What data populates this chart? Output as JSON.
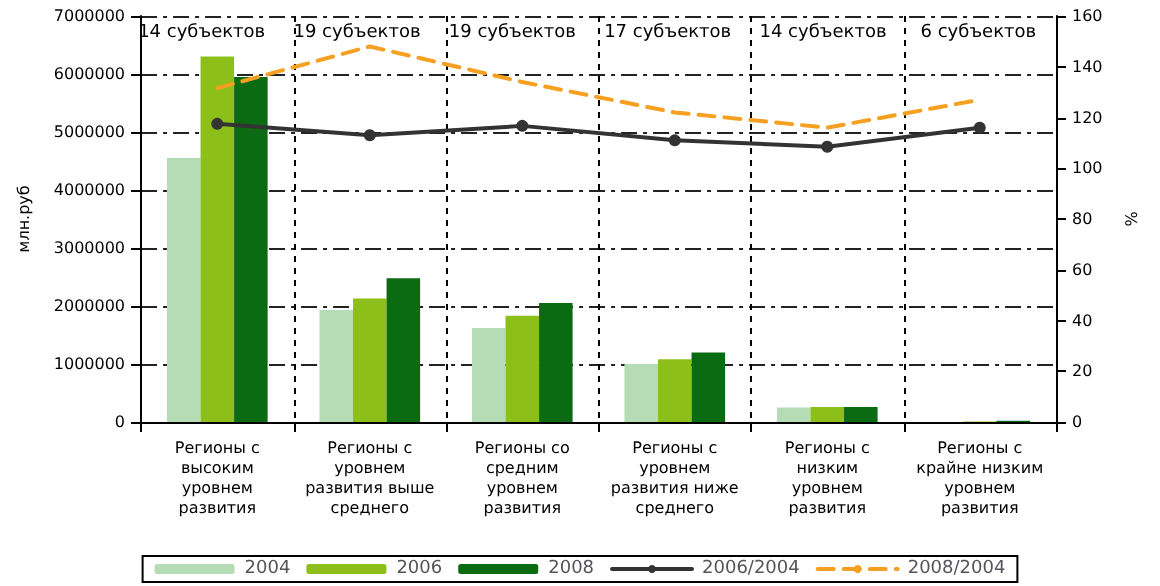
{
  "chart_data": {
    "type": "bar",
    "ylabel": "млн.руб",
    "y2label": "%",
    "categories": [
      "Регионы с высоким уровнем развития",
      "Регионы с уровнем развития выше среднего",
      "Регионы со средним уровнем развития",
      "Регионы с уровнем развития ниже среднего",
      "Регионы с низким уровнем развития",
      "Регионы с крайне низким уровнем развития"
    ],
    "series": [
      {
        "name": "2004",
        "color": "#b5dcb5",
        "values": [
          4550000,
          1930000,
          1620000,
          1000000,
          250000,
          null
        ]
      },
      {
        "name": "2006",
        "color": "#8cbf1a",
        "values": [
          6300000,
          2130000,
          1830000,
          1080000,
          260000,
          10000
        ]
      },
      {
        "name": "2008",
        "color": "#0b6b12",
        "values": [
          5950000,
          2480000,
          2050000,
          1200000,
          260000,
          20000
        ]
      },
      {
        "name": "2006/2004",
        "type": "line",
        "axis": "y2",
        "color": "#333333",
        "marker": "circle",
        "line_style": "solid",
        "values": [
          117.5,
          113,
          116.7,
          111,
          108.5,
          116
        ]
      },
      {
        "name": "2008/2004",
        "type": "line",
        "axis": "y2",
        "color": "#f5a020",
        "marker": "none",
        "line_style": "dashed",
        "values": [
          131.6,
          148,
          134,
          122,
          116,
          127
        ]
      }
    ],
    "ylim": [
      0,
      7000000
    ],
    "yticks": [
      0,
      1000000,
      2000000,
      3000000,
      4000000,
      5000000,
      6000000,
      7000000
    ],
    "y2lim": [
      0,
      160
    ],
    "y2ticks": [
      0,
      20,
      40,
      60,
      80,
      100,
      120,
      140,
      160
    ],
    "annotations": [
      "14 субъектов",
      "19 субъектов",
      "19 субъектов",
      "17 субъектов",
      "14 субъектов",
      "6 субъектов"
    ],
    "grid": true,
    "legend": "bottom"
  }
}
